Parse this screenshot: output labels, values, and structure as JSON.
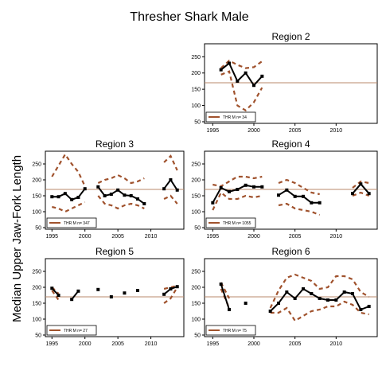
{
  "figure": {
    "title": "Thresher Shark Male",
    "ylabel": "Median Upper Jaw-Fork Length",
    "colors": {
      "line": "#000000",
      "ci": "#a0522d",
      "reference": "#b8896b",
      "frame": "#000000"
    }
  },
  "chart_data": [
    {
      "type": "line",
      "title": "Region 2",
      "xlim": [
        1994,
        2015
      ],
      "ylim": [
        45,
        290
      ],
      "xticks": [
        1995,
        2000,
        2005,
        2010
      ],
      "yticks": [
        50,
        100,
        150,
        200,
        250
      ],
      "reference_line": 170,
      "legend": "THR M n= 34",
      "x": [
        1996,
        1997,
        1998,
        1999,
        2000,
        2001
      ],
      "y": [
        210,
        230,
        175,
        200,
        162,
        190
      ],
      "upper": [
        215,
        238,
        225,
        215,
        218,
        236
      ],
      "lower": [
        195,
        205,
        100,
        85,
        110,
        155
      ]
    },
    {
      "type": "line",
      "title": "Region 3",
      "xlim": [
        1994,
        2015
      ],
      "ylim": [
        45,
        290
      ],
      "xticks": [
        1995,
        2000,
        2005,
        2010
      ],
      "yticks": [
        50,
        100,
        150,
        200,
        250
      ],
      "reference_line": 170,
      "legend": "THR M n= 347",
      "x": [
        1995,
        1996,
        1997,
        1998,
        1999,
        2000,
        2002,
        2003,
        2004,
        2005,
        2006,
        2007,
        2008,
        2009,
        2012,
        2013,
        2014
      ],
      "y": [
        147,
        147,
        157,
        138,
        145,
        172,
        178,
        150,
        155,
        168,
        152,
        150,
        140,
        125,
        172,
        200,
        168
      ],
      "upper": [
        210,
        245,
        280,
        250,
        225,
        180,
        190,
        200,
        205,
        215,
        205,
        190,
        195,
        205,
        255,
        275,
        230
      ],
      "lower": [
        115,
        110,
        100,
        110,
        120,
        130,
        150,
        125,
        120,
        110,
        120,
        125,
        120,
        110,
        140,
        150,
        125
      ]
    },
    {
      "type": "line",
      "title": "Region 4",
      "xlim": [
        1994,
        2015
      ],
      "ylim": [
        45,
        290
      ],
      "xticks": [
        1995,
        2000,
        2005,
        2010
      ],
      "yticks": [
        50,
        100,
        150,
        200,
        250
      ],
      "reference_line": 170,
      "legend": "THR M n= 1055",
      "x": [
        1995,
        1996,
        1997,
        1998,
        1999,
        2000,
        2001,
        2003,
        2004,
        2005,
        2006,
        2007,
        2008,
        2012,
        2013,
        2014
      ],
      "y": [
        128,
        175,
        163,
        170,
        183,
        178,
        178,
        152,
        168,
        148,
        148,
        128,
        128,
        157,
        187,
        157
      ],
      "upper": [
        185,
        180,
        195,
        210,
        210,
        205,
        210,
        190,
        200,
        190,
        175,
        160,
        155,
        175,
        195,
        190
      ],
      "lower": [
        105,
        160,
        140,
        140,
        150,
        145,
        150,
        120,
        125,
        110,
        105,
        100,
        90,
        150,
        160,
        150
      ]
    },
    {
      "type": "line",
      "title": "Region 5",
      "xlim": [
        1994,
        2015
      ],
      "ylim": [
        45,
        290
      ],
      "xticks": [
        1995,
        2000,
        2005,
        2010
      ],
      "yticks": [
        50,
        100,
        150,
        200,
        250
      ],
      "reference_line": 170,
      "legend": "THR M n= 27",
      "x": [
        1995,
        1996,
        1998,
        1999,
        2002,
        2004,
        2006,
        2008,
        2012,
        2013,
        2014
      ],
      "y": [
        197,
        175,
        162,
        188,
        193,
        170,
        182,
        190,
        178,
        195,
        202
      ],
      "upper": [
        200,
        180,
        165,
        null,
        null,
        null,
        null,
        null,
        195,
        200,
        205
      ],
      "lower": [
        190,
        160,
        155,
        null,
        null,
        null,
        null,
        null,
        150,
        165,
        200
      ]
    },
    {
      "type": "line",
      "title": "Region 6",
      "xlim": [
        1994,
        2015
      ],
      "ylim": [
        45,
        290
      ],
      "xticks": [
        1995,
        2000,
        2005,
        2010
      ],
      "yticks": [
        50,
        100,
        150,
        200,
        250
      ],
      "reference_line": 170,
      "legend": "THR M n= 75",
      "x": [
        1996,
        1997,
        1999,
        2002,
        2003,
        2004,
        2005,
        2006,
        2007,
        2008,
        2009,
        2010,
        2011,
        2012,
        2013,
        2014
      ],
      "y": [
        210,
        130,
        150,
        125,
        150,
        185,
        165,
        195,
        180,
        165,
        160,
        160,
        185,
        180,
        130,
        140
      ],
      "upper": [
        215,
        165,
        null,
        135,
        190,
        230,
        240,
        230,
        220,
        195,
        200,
        235,
        235,
        225,
        185,
        170
      ],
      "lower": [
        195,
        135,
        null,
        120,
        120,
        135,
        95,
        110,
        125,
        130,
        140,
        140,
        155,
        145,
        120,
        115
      ]
    }
  ]
}
